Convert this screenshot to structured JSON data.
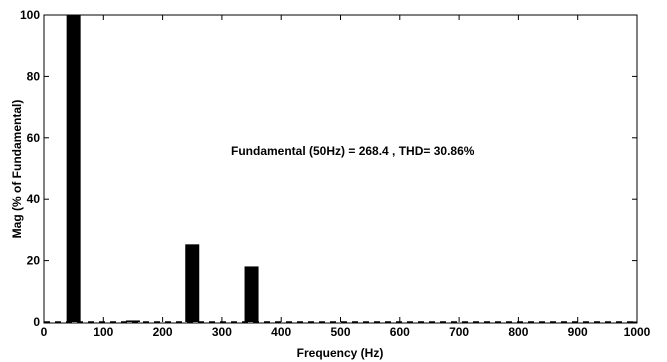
{
  "chart_data": {
    "type": "bar",
    "title": "",
    "xlabel": "Frequency (Hz)",
    "ylabel": "Mag (% of Fundamental)",
    "xlim": [
      0,
      1000
    ],
    "ylim": [
      0,
      100
    ],
    "xticks": [
      0,
      100,
      200,
      300,
      400,
      500,
      600,
      700,
      800,
      900,
      1000
    ],
    "yticks": [
      0,
      20,
      40,
      60,
      80,
      100
    ],
    "grid": false,
    "annotation": "Fundamental (50Hz) = 268.4 , THD= 30.86%",
    "bar_color": "#000000",
    "x": [
      50,
      150,
      250,
      350
    ],
    "values": [
      100,
      0.5,
      25.3,
      18.1
    ]
  }
}
